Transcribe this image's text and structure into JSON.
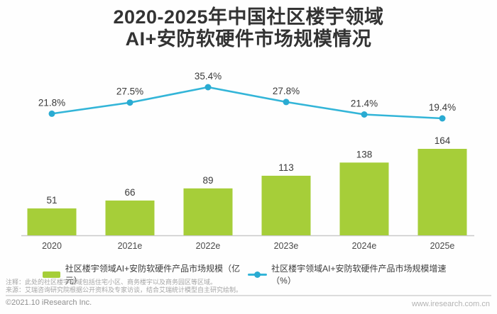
{
  "title": {
    "line1": "2020-2025年中国社区楼宇领域",
    "line2": "AI+安防软硬件市场规模情况"
  },
  "chart_data": {
    "type": "bar+line",
    "title": "2020-2025年中国社区楼宇领域AI+安防软硬件市场规模情况",
    "categories": [
      "2020",
      "2021e",
      "2022e",
      "2023e",
      "2024e",
      "2025e"
    ],
    "series": [
      {
        "name": "社区楼宇领域AI+安防软硬件产品市场规模（亿元）",
        "type": "bar",
        "unit": "亿元",
        "values": [
          51,
          66,
          89,
          113,
          138,
          164
        ],
        "color": "#a6ce39"
      },
      {
        "name": "社区楼宇领域AI+安防软硬件产品市场规模增速（%）",
        "type": "line",
        "unit": "%",
        "values": [
          21.8,
          27.5,
          35.4,
          27.8,
          21.4,
          19.4
        ],
        "labels": [
          "21.8%",
          "27.5%",
          "35.4%",
          "27.8%",
          "21.4%",
          "19.4%"
        ],
        "color": "#33b5d8",
        "point_color": "#2aabd2"
      }
    ],
    "legend_position": "bottom",
    "grid": false,
    "value_labels_shown": true,
    "axis_color": "#c9c9c9",
    "label_color": "#3a3a3a",
    "tick_color": "#4a4a4a"
  },
  "footnotes": {
    "note": "注释：此处的社区楼宇领域包括住宅小区、商务楼宇以及商务园区等区域。",
    "source": "来源：艾瑞咨询研究院根据公开资料及专家访谈，结合艾瑞统计模型自主研究绘制。"
  },
  "footer": {
    "copyright": "©2021.10 iResearch Inc.",
    "website": "www.iresearch.com.cn"
  }
}
